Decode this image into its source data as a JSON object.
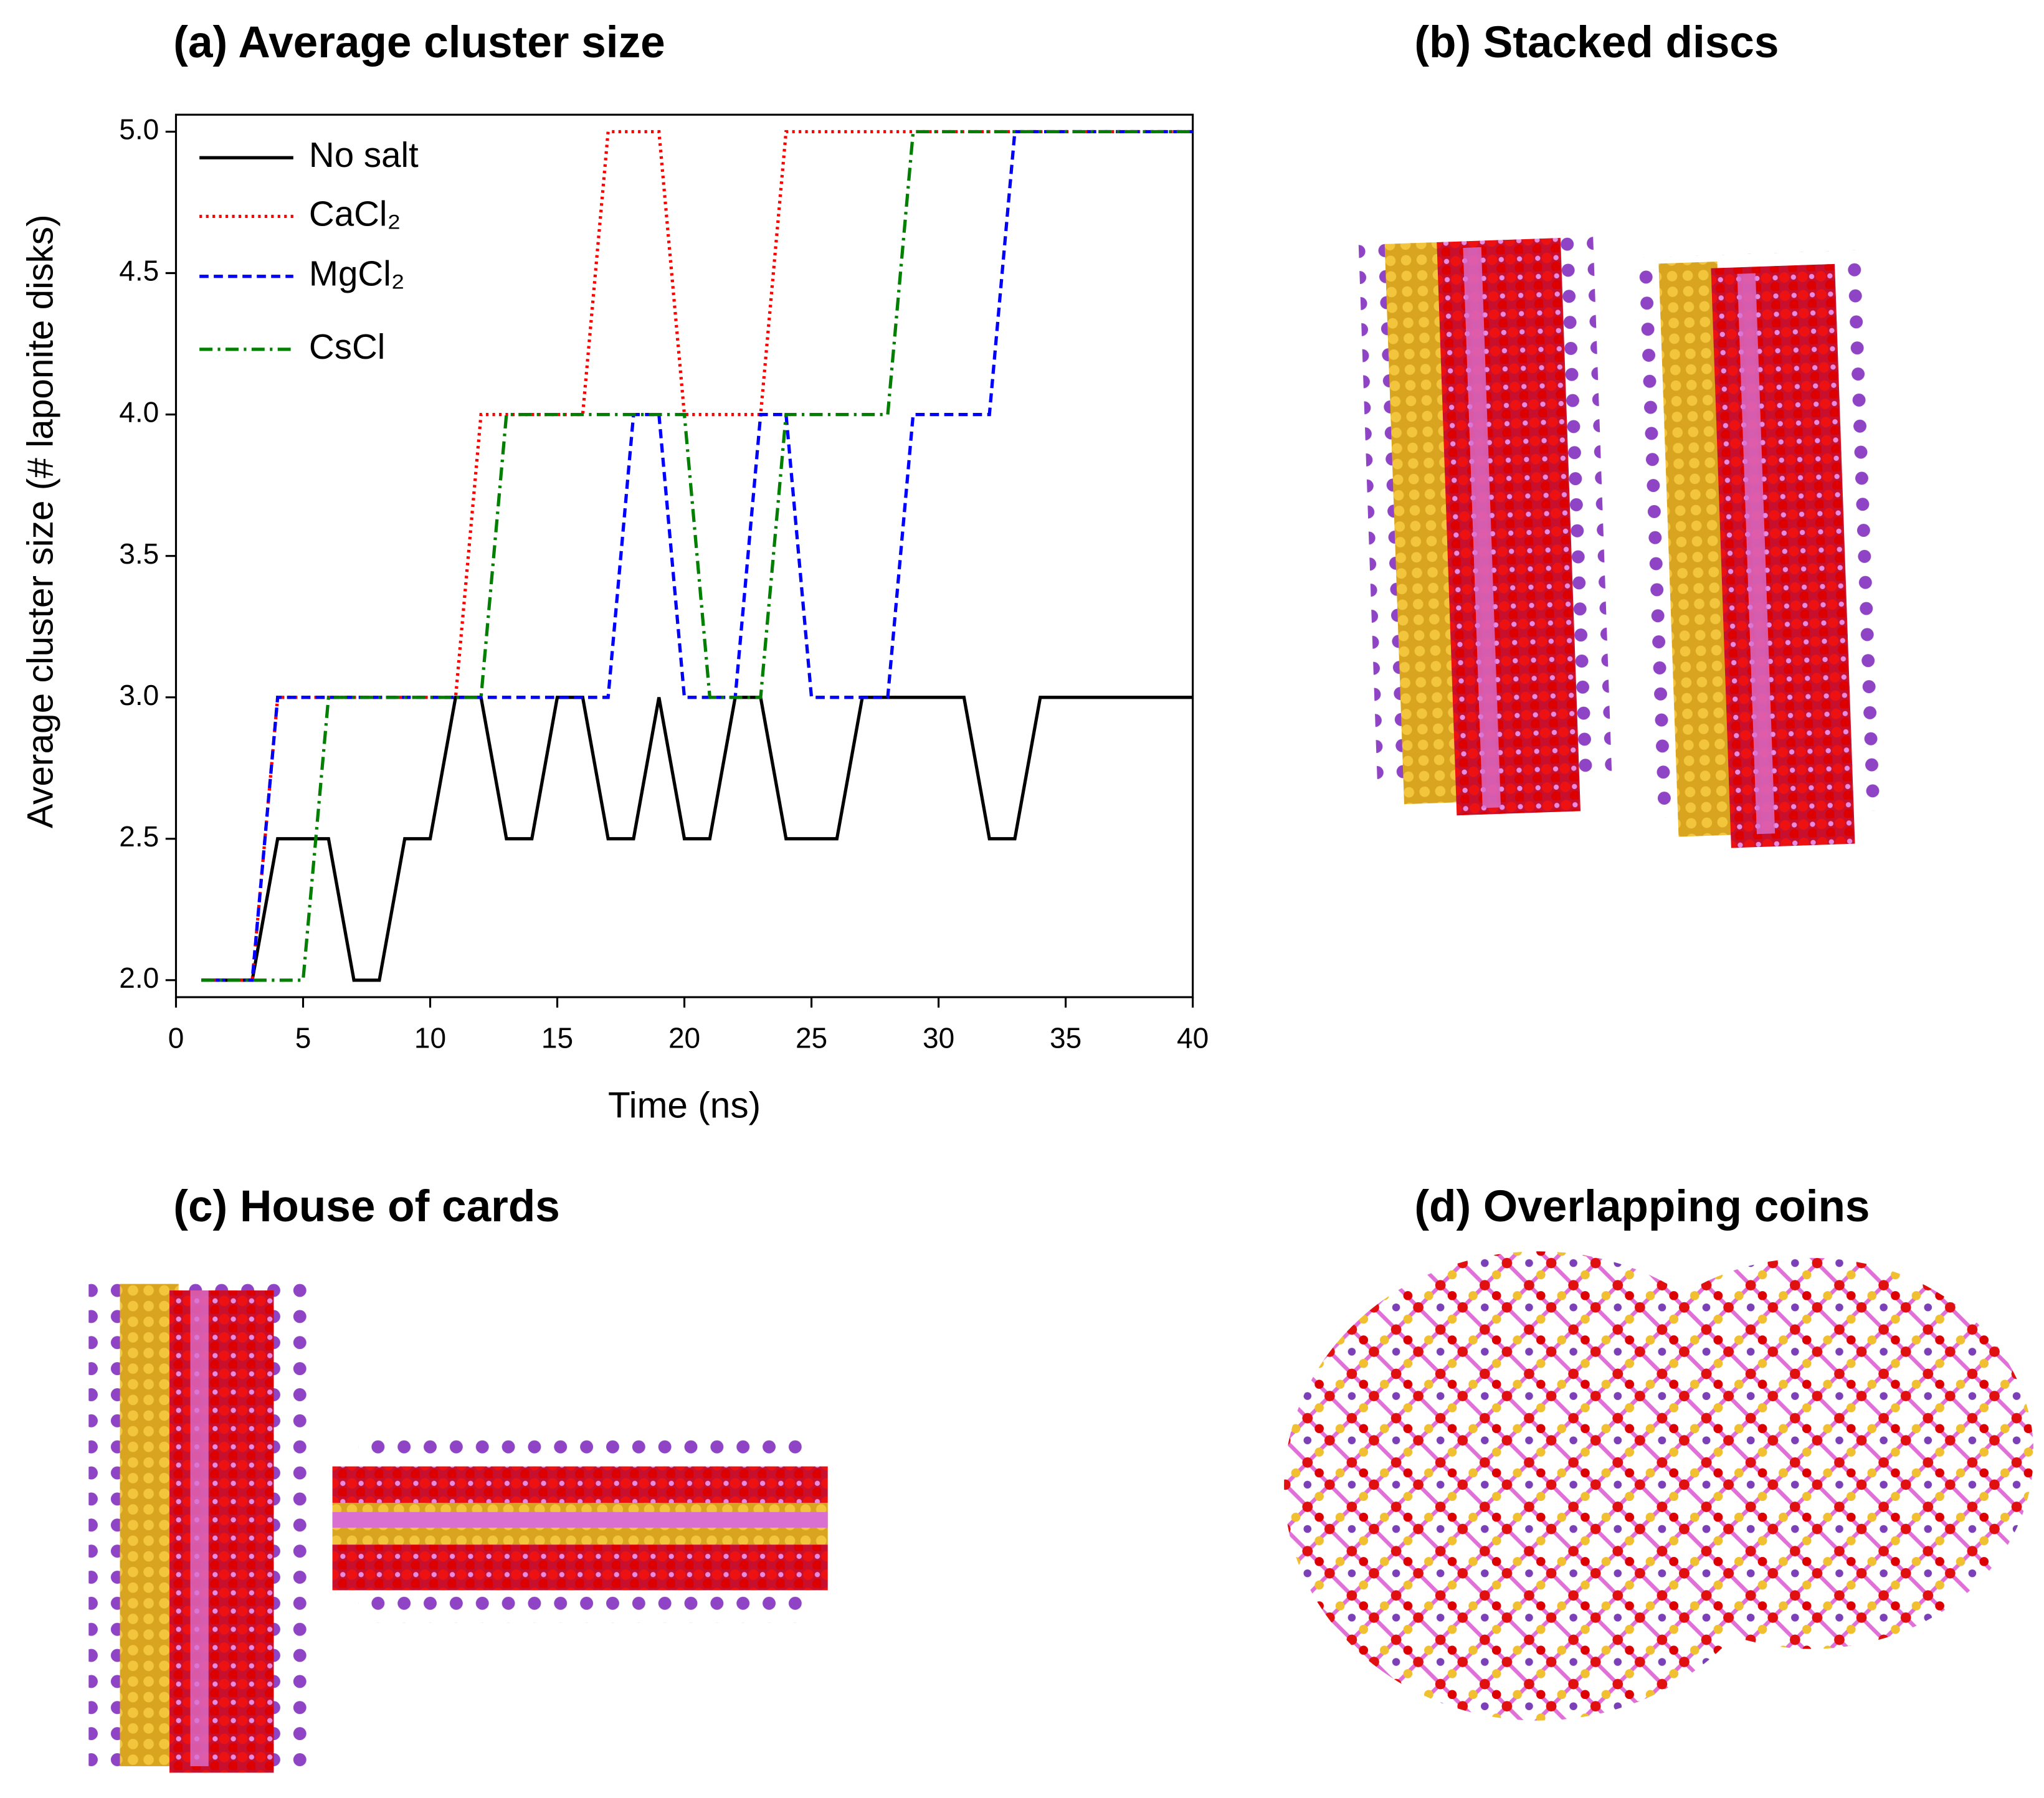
{
  "chart_data": {
    "type": "line",
    "title": "(a) Average cluster size",
    "x_label": "Time (ns)",
    "y_label": "Average cluster size (# laponite disks)",
    "x": [
      1,
      2,
      3,
      4,
      5,
      6,
      7,
      8,
      9,
      10,
      11,
      12,
      13,
      14,
      15,
      16,
      17,
      18,
      19,
      20,
      21,
      22,
      23,
      24,
      25,
      26,
      27,
      28,
      29,
      30,
      31,
      32,
      33,
      34,
      35,
      36,
      37,
      38,
      39,
      40
    ],
    "series": [
      {
        "name": "No salt",
        "color": "#000000",
        "style": "solid",
        "values": [
          2,
          2,
          2,
          2.5,
          2.5,
          2.5,
          2,
          2,
          2.5,
          2.5,
          3,
          3,
          2.5,
          2.5,
          3,
          3,
          2.5,
          2.5,
          3,
          2.5,
          2.5,
          3,
          3,
          2.5,
          2.5,
          2.5,
          3,
          3,
          3,
          3,
          3,
          2.5,
          2.5,
          3,
          3,
          3,
          3,
          3,
          3,
          3
        ]
      },
      {
        "name": "CaCl₂",
        "color": "#ff0000",
        "style": "dotted",
        "values": [
          2,
          2,
          2,
          3,
          3,
          3,
          3,
          3,
          3,
          3,
          3,
          4,
          4,
          4,
          4,
          4,
          5,
          5,
          5,
          4,
          4,
          4,
          4,
          5,
          5,
          5,
          5,
          5,
          5,
          5,
          5,
          5,
          5,
          5,
          5,
          5,
          5,
          5,
          5,
          5
        ]
      },
      {
        "name": "MgCl₂",
        "color": "#0000ff",
        "style": "dashed",
        "values": [
          2,
          2,
          2,
          3,
          3,
          3,
          3,
          3,
          3,
          3,
          3,
          3,
          3,
          3,
          3,
          3,
          3,
          4,
          4,
          3,
          3,
          3,
          4,
          4,
          3,
          3,
          3,
          3,
          4,
          4,
          4,
          4,
          5,
          5,
          5,
          5,
          5,
          5,
          5,
          5
        ]
      },
      {
        "name": "CsCl",
        "color": "#007f00",
        "style": "dashdot",
        "values": [
          2,
          2,
          2,
          2,
          2,
          3,
          3,
          3,
          3,
          3,
          3,
          3,
          4,
          4,
          4,
          4,
          4,
          4,
          4,
          4,
          3,
          3,
          3,
          4,
          4,
          4,
          4,
          4,
          5,
          5,
          5,
          5,
          5,
          5,
          5,
          5,
          5,
          5,
          5,
          5
        ]
      }
    ],
    "xlim": [
      0,
      40
    ],
    "xticks": [
      0,
      5,
      10,
      15,
      20,
      25,
      30,
      35,
      40
    ],
    "ylim": [
      1.94,
      5.06
    ],
    "yticks": [
      {
        "value": 2,
        "label": "2.0"
      },
      {
        "value": 2.5,
        "label": "2.5"
      },
      {
        "value": 3,
        "label": "3.0"
      },
      {
        "value": 3.5,
        "label": "3.5"
      },
      {
        "value": 4,
        "label": "4.0"
      },
      {
        "value": 4.5,
        "label": "4.5"
      },
      {
        "value": 5,
        "label": "5.0"
      }
    ],
    "legend": "upper left",
    "grid": false
  },
  "panels": [
    {
      "title": "(b) Stacked discs"
    },
    {
      "title": "(c) House of cards"
    },
    {
      "title": "(d) Overlapping coins"
    }
  ]
}
